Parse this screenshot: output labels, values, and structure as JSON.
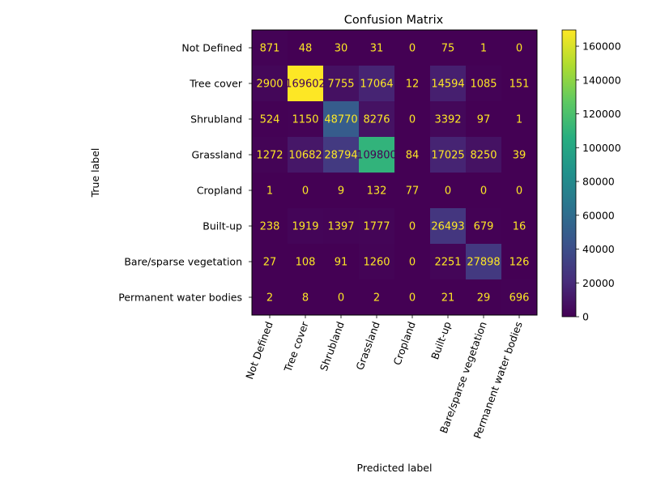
{
  "chart_data": {
    "type": "heatmap",
    "title": "Confusion Matrix",
    "xlabel": "Predicted label",
    "ylabel": "True label",
    "x_categories": [
      "Not Defined",
      "Tree cover",
      "Shrubland",
      "Grassland",
      "Cropland",
      "Built-up",
      "Bare/sparse vegetation",
      "Permanent water bodies"
    ],
    "y_categories": [
      "Not Defined",
      "Tree cover",
      "Shrubland",
      "Grassland",
      "Cropland",
      "Built-up",
      "Bare/sparse vegetation",
      "Permanent water bodies"
    ],
    "values": [
      [
        871,
        48,
        30,
        31,
        0,
        75,
        1,
        0
      ],
      [
        2900,
        169602,
        7755,
        17064,
        12,
        14594,
        1085,
        151
      ],
      [
        524,
        1150,
        48770,
        8276,
        0,
        3392,
        97,
        1
      ],
      [
        1272,
        10682,
        28794,
        109800,
        84,
        17025,
        8250,
        39
      ],
      [
        1,
        0,
        9,
        132,
        77,
        0,
        0,
        0
      ],
      [
        238,
        1919,
        1397,
        1777,
        0,
        26493,
        679,
        16
      ],
      [
        27,
        108,
        91,
        1260,
        0,
        2251,
        27898,
        126
      ],
      [
        2,
        8,
        0,
        2,
        0,
        21,
        29,
        696
      ]
    ],
    "colormap": "viridis",
    "colorbar": {
      "min": 0,
      "max": 169602,
      "ticks": [
        0,
        20000,
        40000,
        60000,
        80000,
        100000,
        120000,
        140000,
        160000
      ]
    },
    "grid": false
  }
}
